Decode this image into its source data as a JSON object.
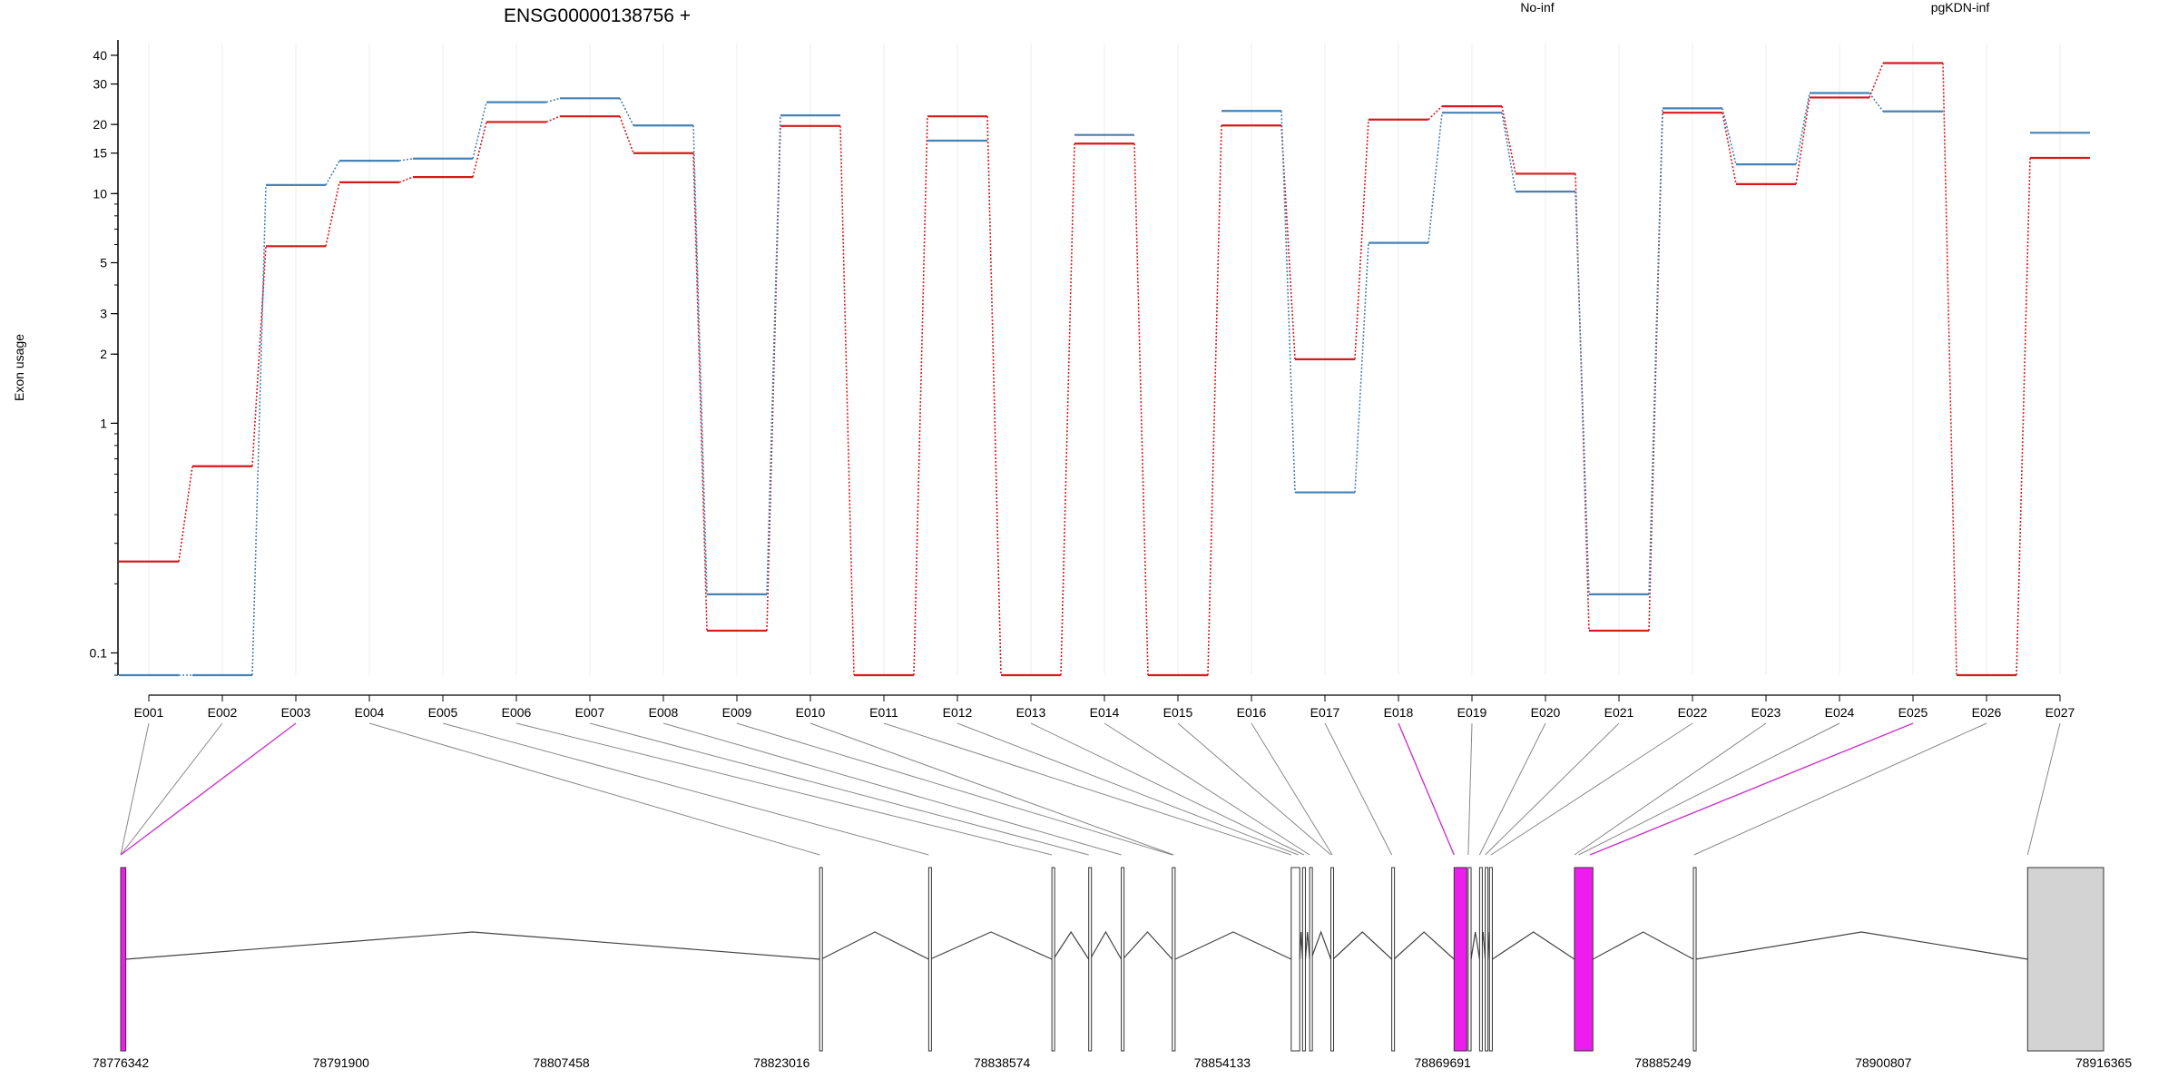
{
  "chart_data": {
    "type": "line",
    "title": "ENSG00000138756 +",
    "ylabel": "Exon usage",
    "xlabel": "",
    "y_scale": "log",
    "ylim": [
      0.08,
      45
    ],
    "y_ticks": [
      0.1,
      1,
      2,
      3,
      5,
      10,
      15,
      20,
      30,
      40
    ],
    "y_tick_labels": [
      "0.1",
      "1",
      "2",
      "3",
      "5",
      "10",
      "15",
      "20",
      "30",
      "40"
    ],
    "categories": [
      "E001",
      "E002",
      "E003",
      "E004",
      "E005",
      "E006",
      "E007",
      "E008",
      "E009",
      "E010",
      "E011",
      "E012",
      "E013",
      "E014",
      "E015",
      "E016",
      "E017",
      "E018",
      "E019",
      "E020",
      "E021",
      "E022",
      "E023",
      "E024",
      "E025",
      "E026",
      "E027"
    ],
    "legend_position": "top-right",
    "series": [
      {
        "name": "No-inf",
        "color": "#d7191c",
        "values": [
          0.25,
          0.65,
          5.9,
          11.2,
          11.8,
          20.5,
          21.7,
          15.0,
          0.125,
          19.7,
          0.08,
          21.7,
          0.08,
          16.5,
          0.08,
          19.8,
          1.9,
          21.0,
          24.0,
          12.2,
          0.125,
          22.5,
          11.0,
          26.2,
          37.0,
          0.08,
          14.3
        ]
      },
      {
        "name": "pgKDN-inf",
        "color": "#4682b4",
        "values": [
          0.08,
          0.08,
          10.9,
          13.9,
          14.2,
          25.0,
          26.0,
          19.8,
          0.18,
          21.9,
          null,
          17.0,
          null,
          18.0,
          null,
          22.9,
          0.5,
          6.1,
          22.5,
          10.2,
          0.18,
          23.5,
          13.4,
          27.4,
          22.8,
          null,
          18.4
        ]
      }
    ],
    "gene_model": {
      "coordinates": [
        "78776342",
        "78791900",
        "78807458",
        "78823016",
        "78838574",
        "78854133",
        "78869691",
        "78885249",
        "78900807",
        "78916365"
      ],
      "x_range": [
        78776342,
        78916365
      ],
      "exons": [
        {
          "start": 78776342,
          "end": 78776700,
          "fill": "#ee1cee",
          "kind": "tall"
        },
        {
          "start": 78825700,
          "end": 78825800,
          "fill": "#ffffff",
          "kind": "tall"
        },
        {
          "start": 78833400,
          "end": 78833500,
          "fill": "#ffffff",
          "kind": "tall"
        },
        {
          "start": 78842100,
          "end": 78842200,
          "fill": "#ffffff",
          "kind": "tall"
        },
        {
          "start": 78844700,
          "end": 78844800,
          "fill": "#ffffff",
          "kind": "tall"
        },
        {
          "start": 78847000,
          "end": 78847100,
          "fill": "#ffffff",
          "kind": "tall"
        },
        {
          "start": 78850600,
          "end": 78850800,
          "fill": "#ffffff",
          "kind": "tall"
        },
        {
          "start": 78859000,
          "end": 78859600,
          "fill": "#ffffff",
          "kind": "tall"
        },
        {
          "start": 78859800,
          "end": 78860000,
          "fill": "#ffffff",
          "kind": "tall"
        },
        {
          "start": 78860300,
          "end": 78860400,
          "fill": "#ffffff",
          "kind": "tall"
        },
        {
          "start": 78861800,
          "end": 78861950,
          "fill": "#ffffff",
          "kind": "tall"
        },
        {
          "start": 78866100,
          "end": 78866250,
          "fill": "#ffffff",
          "kind": "tall"
        },
        {
          "start": 78870500,
          "end": 78871400,
          "fill": "#ee1cee",
          "kind": "tall"
        },
        {
          "start": 78871500,
          "end": 78871700,
          "fill": "#ffffff",
          "kind": "tall"
        },
        {
          "start": 78872300,
          "end": 78872400,
          "fill": "#ffffff",
          "kind": "tall"
        },
        {
          "start": 78872700,
          "end": 78872800,
          "fill": "#ffffff",
          "kind": "tall"
        },
        {
          "start": 78873000,
          "end": 78873200,
          "fill": "#ffffff",
          "kind": "tall"
        },
        {
          "start": 78879000,
          "end": 78880300,
          "fill": "#ee1cee",
          "kind": "tall"
        },
        {
          "start": 78887400,
          "end": 78887550,
          "fill": "#ffffff",
          "kind": "tall"
        },
        {
          "start": 78911000,
          "end": 78916365,
          "fill": "#d3d3d3",
          "kind": "utr"
        }
      ],
      "connector_targets": [
        78776342,
        78776342,
        78776342,
        78825700,
        78833400,
        78842100,
        78844700,
        78847000,
        78850600,
        78850700,
        78859000,
        78859500,
        78859900,
        78860300,
        78861800,
        78861900,
        78866100,
        78870500,
        78871500,
        78872300,
        78872700,
        78873100,
        78879000,
        78879300,
        78880100,
        78887450,
        78911000
      ],
      "highlighted_connectors": [
        "E003",
        "E018",
        "E025"
      ],
      "highlight_color": "#cc33cc"
    }
  }
}
